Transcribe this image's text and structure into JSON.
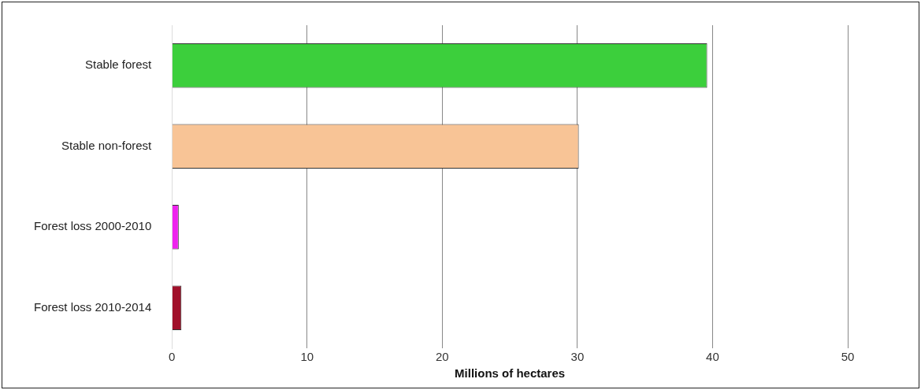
{
  "chart_data": {
    "type": "bar",
    "orientation": "horizontal",
    "categories": [
      "Stable forest",
      "Stable non-forest",
      "Forest loss 2000-2010",
      "Forest loss 2010-2014"
    ],
    "values": [
      39.6,
      30.1,
      0.5,
      0.7
    ],
    "colors": [
      "#3ccf3c",
      "#f8c496",
      "#ee22ee",
      "#a0102a"
    ],
    "xlabel": "Millions of hectares",
    "xlim": [
      0,
      50
    ],
    "xticks": [
      0,
      10,
      20,
      30,
      40,
      50
    ],
    "grid": "x",
    "legend": false
  }
}
